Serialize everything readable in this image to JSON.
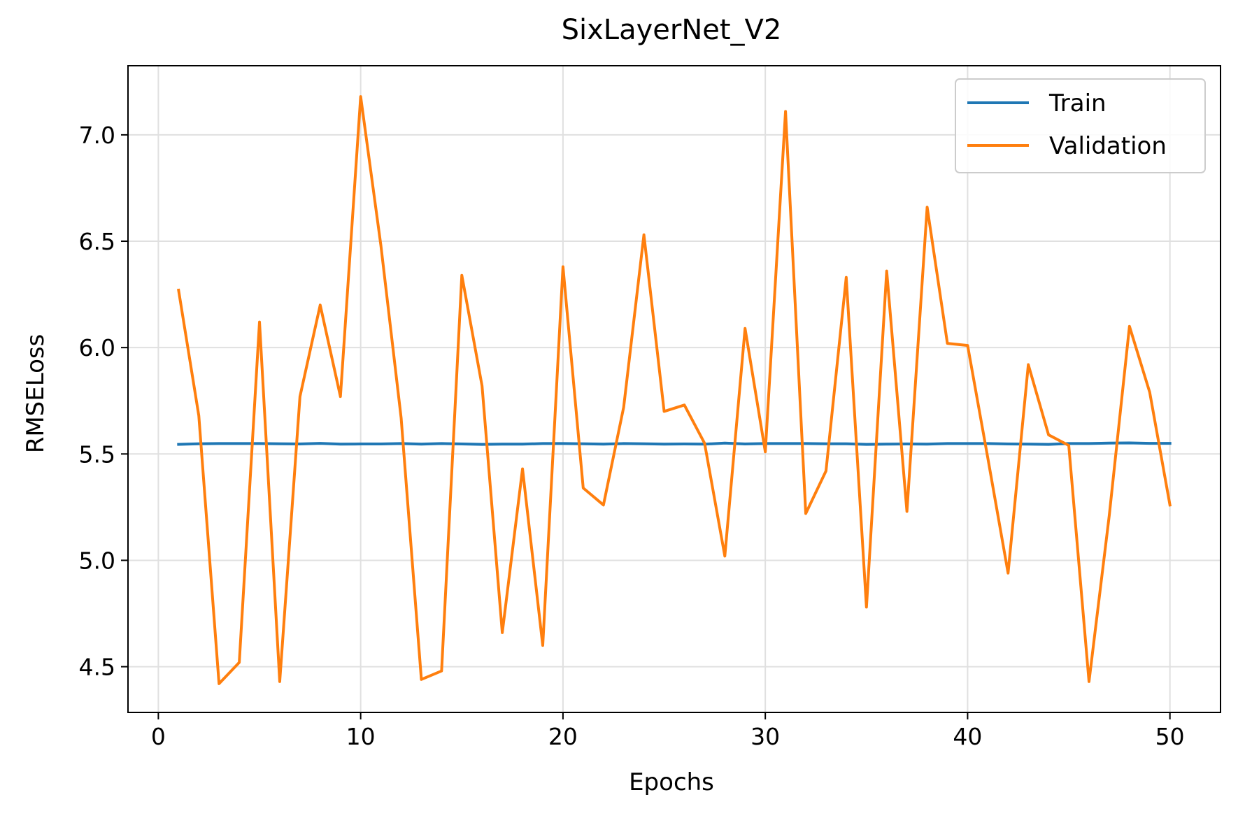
{
  "chart_data": {
    "type": "line",
    "title": "SixLayerNet_V2",
    "xlabel": "Epochs",
    "ylabel": "RMSELoss",
    "xlim": [
      -1.5,
      52.5
    ],
    "ylim": [
      4.285,
      7.325
    ],
    "x_ticks": [
      0,
      10,
      20,
      30,
      40,
      50
    ],
    "y_ticks": [
      4.5,
      5.0,
      5.5,
      6.0,
      6.5,
      7.0
    ],
    "y_tick_labels": [
      "4.5",
      "5.0",
      "5.5",
      "6.0",
      "6.5",
      "7.0"
    ],
    "grid": true,
    "legend_position": "upper right",
    "x": [
      1,
      2,
      3,
      4,
      5,
      6,
      7,
      8,
      9,
      10,
      11,
      12,
      13,
      14,
      15,
      16,
      17,
      18,
      19,
      20,
      21,
      22,
      23,
      24,
      25,
      26,
      27,
      28,
      29,
      30,
      31,
      32,
      33,
      34,
      35,
      36,
      37,
      38,
      39,
      40,
      41,
      42,
      43,
      44,
      45,
      46,
      47,
      48,
      49,
      50
    ],
    "series": [
      {
        "name": "Train",
        "color": "#1f77b4",
        "values": [
          5.545,
          5.548,
          5.549,
          5.549,
          5.549,
          5.548,
          5.547,
          5.55,
          5.546,
          5.547,
          5.547,
          5.549,
          5.546,
          5.549,
          5.547,
          5.545,
          5.546,
          5.546,
          5.549,
          5.549,
          5.548,
          5.546,
          5.549,
          5.548,
          5.546,
          5.547,
          5.546,
          5.551,
          5.547,
          5.549,
          5.549,
          5.549,
          5.548,
          5.548,
          5.545,
          5.546,
          5.547,
          5.546,
          5.549,
          5.549,
          5.549,
          5.547,
          5.546,
          5.545,
          5.549,
          5.549,
          5.551,
          5.552,
          5.55,
          5.55
        ]
      },
      {
        "name": "Validation",
        "color": "#ff7f0e",
        "values": [
          6.27,
          5.68,
          4.42,
          4.52,
          6.12,
          4.43,
          5.77,
          6.2,
          5.77,
          7.18,
          6.48,
          5.67,
          4.44,
          4.48,
          6.34,
          5.82,
          4.66,
          5.43,
          4.6,
          6.38,
          5.34,
          5.26,
          5.72,
          6.53,
          5.7,
          5.73,
          5.55,
          5.02,
          6.09,
          5.51,
          7.11,
          5.22,
          5.42,
          6.33,
          4.78,
          6.36,
          5.23,
          6.66,
          6.02,
          6.01,
          5.48,
          4.94,
          5.92,
          5.59,
          5.54,
          4.43,
          5.21,
          6.1,
          5.79,
          5.26
        ]
      }
    ]
  }
}
